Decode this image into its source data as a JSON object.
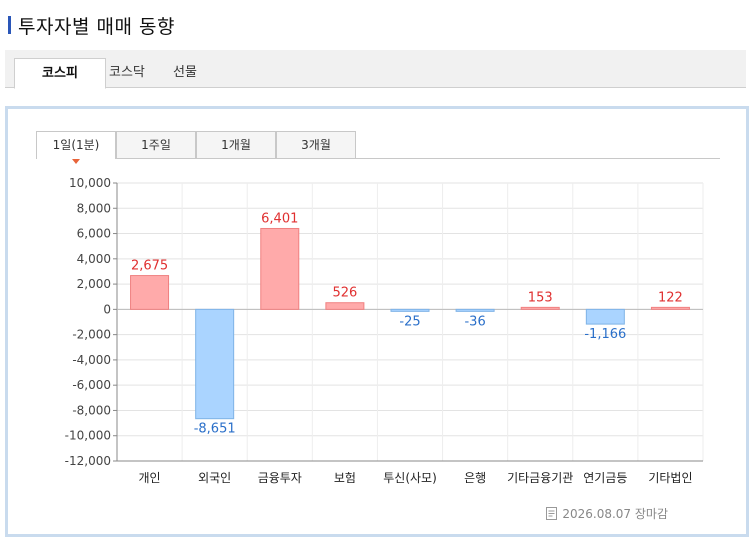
{
  "header": {
    "title": "투자자별 매매 동향"
  },
  "market_tabs": [
    {
      "label": "코스피",
      "active": true
    },
    {
      "label": "코스닥",
      "active": false
    },
    {
      "label": "선물",
      "active": false
    }
  ],
  "period_tabs": [
    {
      "label": "1일(1분)",
      "active": true
    },
    {
      "label": "1주일",
      "active": false
    },
    {
      "label": "1개월",
      "active": false
    },
    {
      "label": "3개월",
      "active": false
    }
  ],
  "footer": {
    "date_text": "2026.08.07 장마감",
    "icon": "document-icon"
  },
  "colors": {
    "positive_fill": "#ffaaaa",
    "positive_stroke": "#f08080",
    "positive_text": "#e03030",
    "negative_fill": "#aad4ff",
    "negative_stroke": "#7fb3e6",
    "negative_text": "#2a6fc9",
    "accent": "#2a56b8"
  },
  "chart_data": {
    "type": "bar",
    "categories": [
      "개인",
      "외국인",
      "금융투자",
      "보험",
      "투신(사모)",
      "은행",
      "기타금융기관",
      "연기금등",
      "기타법인"
    ],
    "values": [
      2675,
      -8651,
      6401,
      526,
      -25,
      -36,
      153,
      -1166,
      122
    ],
    "value_labels": [
      "2,675",
      "-8,651",
      "6,401",
      "526",
      "-25",
      "-36",
      "153",
      "-1,166",
      "122"
    ],
    "ylim": [
      -12000,
      10000
    ],
    "yticks": [
      10000,
      8000,
      6000,
      4000,
      2000,
      0,
      -2000,
      -4000,
      -6000,
      -8000,
      -10000,
      -12000
    ],
    "ytick_labels": [
      "10,000",
      "8,000",
      "6,000",
      "4,000",
      "2,000",
      "0",
      "-2,000",
      "-4,000",
      "-6,000",
      "-8,000",
      "-10,000",
      "-12,000"
    ],
    "grid": true,
    "title": "",
    "xlabel": "",
    "ylabel": ""
  }
}
